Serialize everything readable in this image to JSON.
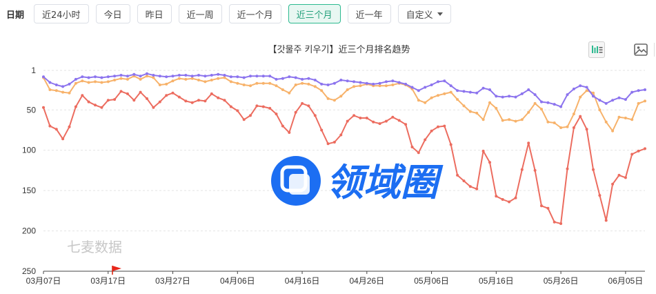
{
  "filters": {
    "label": "日期",
    "options": [
      "近24小时",
      "今日",
      "昨日",
      "近一周",
      "近一个月",
      "近三个月",
      "近一年"
    ],
    "active": "近三个月",
    "custom_label": "自定义"
  },
  "toolbar": {
    "bar_toggle_icon": "bar-list-icon",
    "save_icon": "save-image-icon"
  },
  "watermarks": {
    "brand": "领域圈",
    "source": "七麦数据"
  },
  "colors": {
    "series_red": "#ec6c5f",
    "series_orange": "#f7b26a",
    "series_purple": "#8c74ee",
    "active_green": "#2bb98f",
    "brand_blue": "#1c6ef2"
  },
  "chart_data": {
    "type": "line",
    "title": "【갓물주 키우기】近三个月排名趋势",
    "y_axis": {
      "inverted": true,
      "min": 1,
      "max": 250,
      "ticks": [
        1,
        50,
        100,
        150,
        200,
        250
      ]
    },
    "x_tick_labels": [
      "03月07日",
      "03月17日",
      "03月27日",
      "04月06日",
      "04月16日",
      "04月26日",
      "05月06日",
      "05月16日",
      "05月26日",
      "06月05日"
    ],
    "x_points": 94,
    "grid": "horizontal dashed",
    "series": [
      {
        "color": "#ec6c5f",
        "values": [
          47,
          70,
          74,
          86,
          71,
          46,
          32,
          40,
          44,
          47,
          38,
          37,
          27,
          30,
          38,
          28,
          36,
          47,
          40,
          32,
          29,
          34,
          39,
          41,
          38,
          39,
          30,
          35,
          38,
          46,
          51,
          62,
          57,
          45,
          46,
          48,
          55,
          70,
          78,
          53,
          42,
          45,
          57,
          75,
          92,
          90,
          81,
          64,
          57,
          60,
          60,
          65,
          67,
          64,
          59,
          63,
          68,
          96,
          103,
          87,
          76,
          71,
          70,
          93,
          131,
          138,
          145,
          148,
          101,
          115,
          157,
          161,
          164,
          159,
          124,
          91,
          125,
          169,
          172,
          189,
          191,
          123,
          72,
          58,
          74,
          124,
          156,
          187,
          142,
          131,
          134,
          105,
          101,
          98
        ]
      },
      {
        "color": "#f7b26a",
        "values": [
          10,
          25,
          26,
          28,
          29,
          17,
          14,
          16,
          15,
          16,
          15,
          13,
          11,
          12,
          8,
          12,
          8,
          10,
          19,
          18,
          14,
          11,
          12,
          11,
          13,
          15,
          13,
          11,
          10,
          15,
          17,
          19,
          20,
          17,
          17,
          17,
          20,
          25,
          29,
          19,
          17,
          18,
          21,
          26,
          36,
          38,
          33,
          25,
          21,
          20,
          18,
          20,
          20,
          20,
          19,
          17,
          19,
          24,
          38,
          41,
          35,
          32,
          30,
          28,
          37,
          45,
          52,
          54,
          62,
          41,
          48,
          63,
          62,
          64,
          62,
          53,
          42,
          49,
          65,
          66,
          72,
          71,
          55,
          34,
          26,
          29,
          50,
          65,
          76,
          59,
          60,
          62,
          42,
          39
        ]
      },
      {
        "color": "#8c74ee",
        "values": [
          9,
          16,
          19,
          21,
          18,
          12,
          9,
          10,
          9,
          10,
          9,
          8,
          7,
          8,
          6,
          8,
          5,
          7,
          8,
          9,
          8,
          7,
          7,
          8,
          7,
          8,
          7,
          6,
          7,
          9,
          9,
          10,
          8,
          8,
          8,
          8,
          12,
          11,
          9,
          10,
          12,
          11,
          13,
          18,
          19,
          17,
          13,
          14,
          15,
          16,
          17,
          18,
          17,
          15,
          14,
          16,
          18,
          22,
          26,
          22,
          19,
          15,
          14,
          20,
          26,
          27,
          28,
          29,
          23,
          25,
          33,
          34,
          33,
          34,
          30,
          25,
          31,
          40,
          41,
          43,
          46,
          31,
          24,
          20,
          22,
          33,
          38,
          42,
          38,
          35,
          37,
          28,
          26,
          25
        ]
      }
    ]
  }
}
